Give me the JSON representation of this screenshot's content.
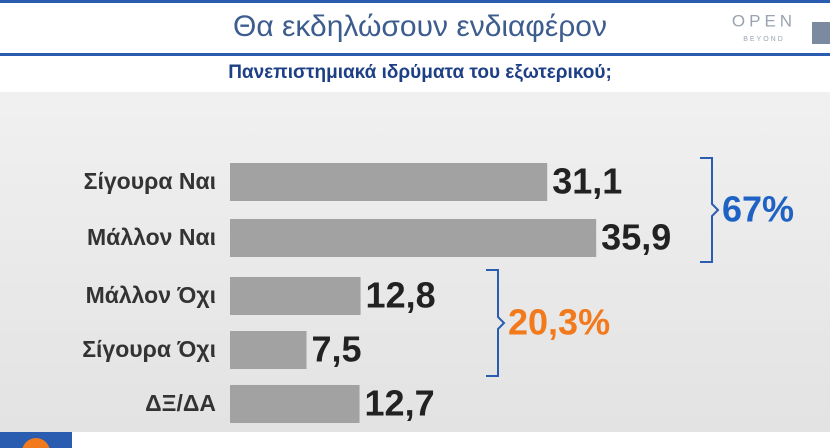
{
  "channel": {
    "name": "OPEN",
    "tagline": "BEYOND"
  },
  "chart_data": {
    "type": "bar",
    "orientation": "horizontal",
    "title": "Θα εκδηλώσουν ενδιαφέρον",
    "subtitle": "Πανεπιστημιακά ιδρύματα του εξωτερικού;",
    "categories": [
      "Σίγουρα Ναι",
      "Μάλλον Ναι",
      "Μάλλον Όχι",
      "Σίγουρα Όχι",
      "ΔΞ/ΔΑ"
    ],
    "values": [
      31.1,
      35.9,
      12.8,
      7.5,
      12.7
    ],
    "value_labels": [
      "31,1",
      "35,9",
      "12,8",
      "7,5",
      "12,7"
    ],
    "color": "#a2a2a2",
    "annotations": [
      {
        "text": "67%",
        "color": "#1e63c4"
      },
      {
        "text": "20,3%",
        "color": "#f27a1c"
      }
    ]
  }
}
